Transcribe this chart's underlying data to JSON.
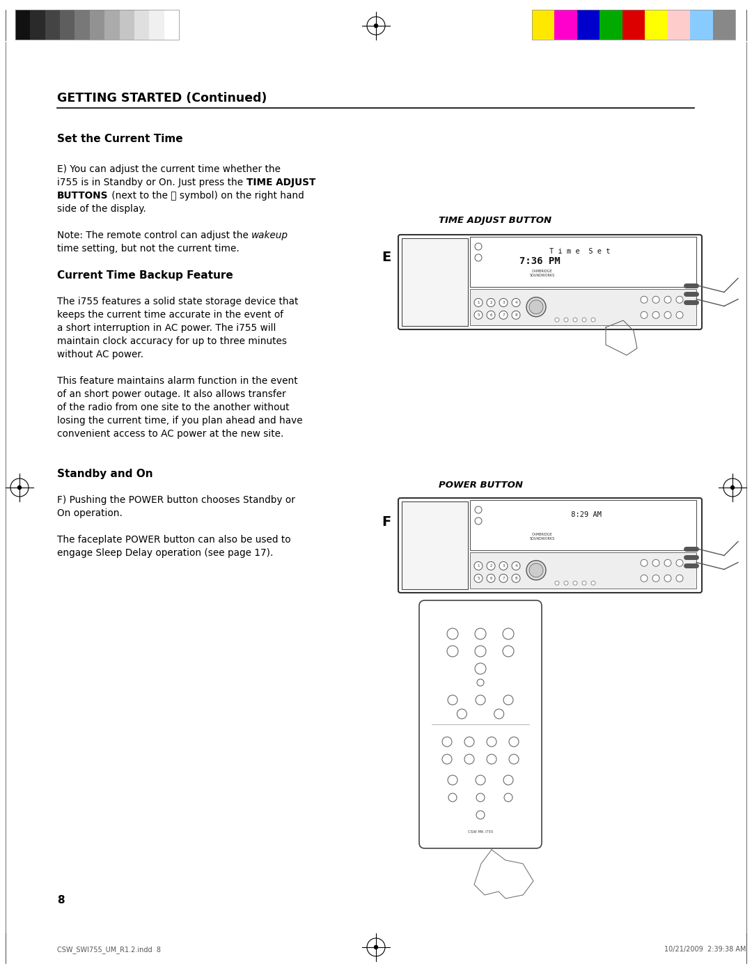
{
  "background_color": "#ffffff",
  "page_number": "8",
  "footer_left": "CSW_SWI755_UM_R1.2.indd  8",
  "footer_right": "10/21/2009  2:39:38 AM",
  "section_title": "GETTING STARTED (Continued)",
  "heading1": "Set the Current Time",
  "heading2": "Current Time Backup Feature",
  "heading3": "Standby and On",
  "label_E": "E",
  "label_F": "F",
  "label_time_button": "TIME ADJUST BUTTON",
  "label_power_button": "POWER BUTTON",
  "text_color": "#000000",
  "gray_strip_colors": [
    "#111111",
    "#2a2a2a",
    "#444444",
    "#5e5e5e",
    "#787878",
    "#929292",
    "#ababab",
    "#c5c5c5",
    "#dfdfdf",
    "#f0f0f0",
    "#ffffff"
  ],
  "color_strip_colors": [
    "#ffe800",
    "#ff00cc",
    "#0000cc",
    "#00aa00",
    "#dd0000",
    "#ffff00",
    "#ffcccc",
    "#88ccff",
    "#888888"
  ],
  "lmargin": 0.075,
  "rmargin": 0.955,
  "col_split": 0.5,
  "fs_body": 9.8,
  "fs_heading": 11.0,
  "fs_section": 12.5
}
